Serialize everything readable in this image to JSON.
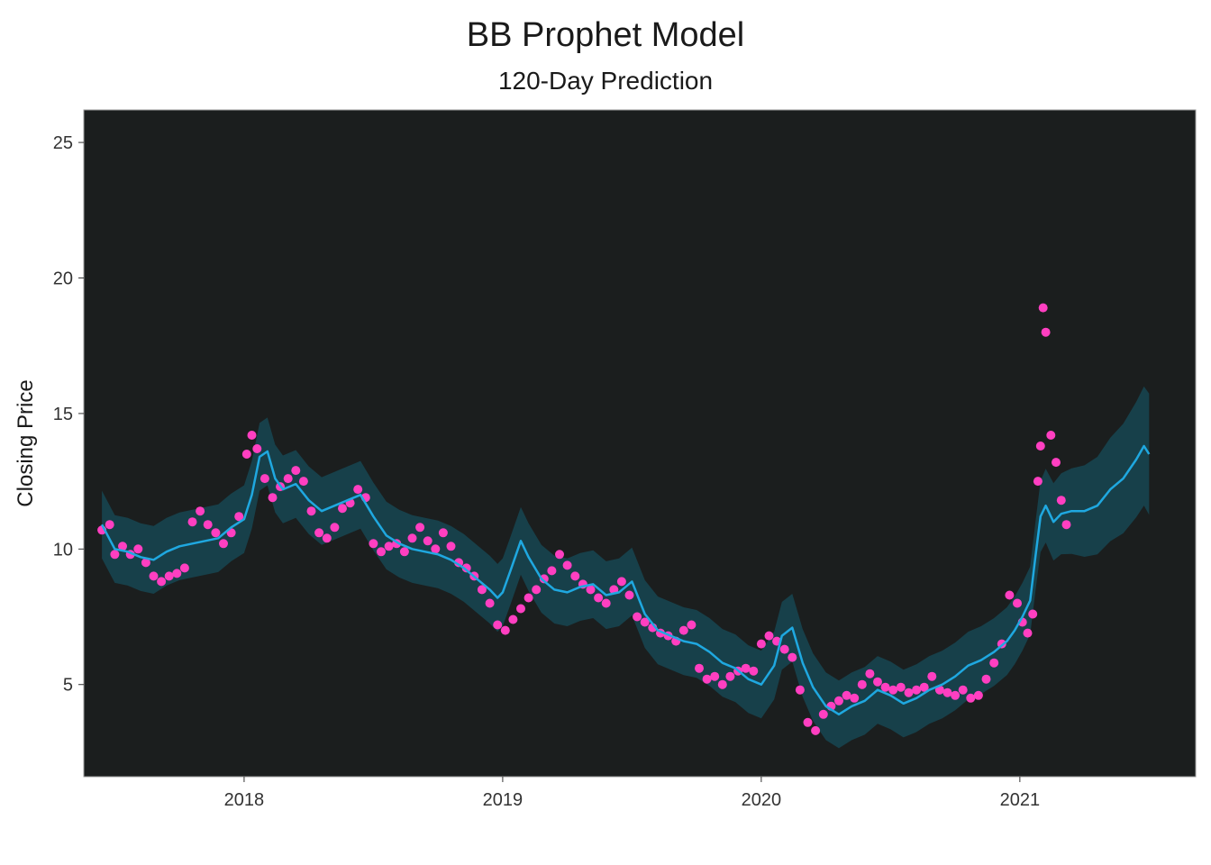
{
  "chart_data": {
    "type": "scatter",
    "title": "BB Prophet Model",
    "subtitle": "120-Day Prediction",
    "xlabel": "",
    "ylabel": "Closing Price",
    "xlim": [
      2017.38,
      2021.68
    ],
    "ylim": [
      1.6,
      26.2
    ],
    "x_ticks": [
      2018,
      2019,
      2020,
      2021
    ],
    "y_ticks": [
      5,
      10,
      15,
      20,
      25
    ],
    "grid": false,
    "legend": "none",
    "colors": {
      "panel_background": "#1b1e1e",
      "panel_border": "#9a9a9a",
      "observed_points": "#ff3fc1",
      "forecast_line": "#1fa8e0",
      "uncertainty_band": "#17404a"
    },
    "series": [
      {
        "kind": "points",
        "x": [
          2017.45,
          2017.48,
          2017.5,
          2017.53,
          2017.56,
          2017.59,
          2017.62,
          2017.65,
          2017.68,
          2017.71,
          2017.74,
          2017.77,
          2017.8,
          2017.83,
          2017.86,
          2017.89,
          2017.92,
          2017.95,
          2017.98,
          2018.01,
          2018.03,
          2018.05,
          2018.08,
          2018.11,
          2018.14,
          2018.17,
          2018.2,
          2018.23,
          2018.26,
          2018.29,
          2018.32,
          2018.35,
          2018.38,
          2018.41,
          2018.44,
          2018.47,
          2018.5,
          2018.53,
          2018.56,
          2018.59,
          2018.62,
          2018.65,
          2018.68,
          2018.71,
          2018.74,
          2018.77,
          2018.8,
          2018.83,
          2018.86,
          2018.89,
          2018.92,
          2018.95,
          2018.98,
          2019.01,
          2019.04,
          2019.07,
          2019.1,
          2019.13,
          2019.16,
          2019.19,
          2019.22,
          2019.25,
          2019.28,
          2019.31,
          2019.34,
          2019.37,
          2019.4,
          2019.43,
          2019.46,
          2019.49,
          2019.52,
          2019.55,
          2019.58,
          2019.61,
          2019.64,
          2019.67,
          2019.7,
          2019.73,
          2019.76,
          2019.79,
          2019.82,
          2019.85,
          2019.88,
          2019.91,
          2019.94,
          2019.97,
          2020.0,
          2020.03,
          2020.06,
          2020.09,
          2020.12,
          2020.15,
          2020.18,
          2020.21,
          2020.24,
          2020.27,
          2020.3,
          2020.33,
          2020.36,
          2020.39,
          2020.42,
          2020.45,
          2020.48,
          2020.51,
          2020.54,
          2020.57,
          2020.6,
          2020.63,
          2020.66,
          2020.69,
          2020.72,
          2020.75,
          2020.78,
          2020.81,
          2020.84,
          2020.87,
          2020.9,
          2020.93,
          2020.96,
          2020.99,
          2021.01,
          2021.03,
          2021.05,
          2021.07,
          2021.08,
          2021.09,
          2021.1,
          2021.12,
          2021.14,
          2021.16,
          2021.18
        ],
        "y": [
          10.7,
          10.9,
          9.8,
          10.1,
          9.8,
          10.0,
          9.5,
          9.0,
          8.8,
          9.0,
          9.1,
          9.3,
          11.0,
          11.4,
          10.9,
          10.6,
          10.2,
          10.6,
          11.2,
          13.5,
          14.2,
          13.7,
          12.6,
          11.9,
          12.3,
          12.6,
          12.9,
          12.5,
          11.4,
          10.6,
          10.4,
          10.8,
          11.5,
          11.7,
          12.2,
          11.9,
          10.2,
          9.9,
          10.1,
          10.2,
          9.9,
          10.4,
          10.8,
          10.3,
          10.0,
          10.6,
          10.1,
          9.5,
          9.3,
          9.0,
          8.5,
          8.0,
          7.2,
          7.0,
          7.4,
          7.8,
          8.2,
          8.5,
          8.9,
          9.2,
          9.8,
          9.4,
          9.0,
          8.7,
          8.5,
          8.2,
          8.0,
          8.5,
          8.8,
          8.3,
          7.5,
          7.3,
          7.1,
          6.9,
          6.8,
          6.6,
          7.0,
          7.2,
          5.6,
          5.2,
          5.3,
          5.0,
          5.3,
          5.5,
          5.6,
          5.5,
          6.5,
          6.8,
          6.6,
          6.3,
          6.0,
          4.8,
          3.6,
          3.3,
          3.9,
          4.2,
          4.4,
          4.6,
          4.5,
          5.0,
          5.4,
          5.1,
          4.9,
          4.8,
          4.9,
          4.7,
          4.8,
          4.9,
          5.3,
          4.8,
          4.7,
          4.6,
          4.8,
          4.5,
          4.6,
          5.2,
          5.8,
          6.5,
          8.3,
          8.0,
          7.3,
          6.9,
          7.6,
          12.5,
          13.8,
          18.9,
          18.0,
          14.2,
          13.2,
          11.8,
          10.9
        ]
      },
      {
        "kind": "line",
        "x": [
          2017.45,
          2017.5,
          2017.55,
          2017.6,
          2017.65,
          2017.7,
          2017.75,
          2017.8,
          2017.85,
          2017.9,
          2017.95,
          2018.0,
          2018.03,
          2018.06,
          2018.09,
          2018.12,
          2018.15,
          2018.2,
          2018.25,
          2018.3,
          2018.35,
          2018.4,
          2018.45,
          2018.5,
          2018.55,
          2018.6,
          2018.65,
          2018.7,
          2018.75,
          2018.8,
          2018.85,
          2018.9,
          2018.95,
          2018.98,
          2019.0,
          2019.03,
          2019.07,
          2019.1,
          2019.15,
          2019.2,
          2019.25,
          2019.3,
          2019.35,
          2019.4,
          2019.45,
          2019.5,
          2019.55,
          2019.6,
          2019.65,
          2019.7,
          2019.75,
          2019.8,
          2019.85,
          2019.9,
          2019.95,
          2020.0,
          2020.05,
          2020.08,
          2020.12,
          2020.16,
          2020.2,
          2020.25,
          2020.3,
          2020.35,
          2020.4,
          2020.45,
          2020.5,
          2020.55,
          2020.6,
          2020.65,
          2020.7,
          2020.75,
          2020.8,
          2020.85,
          2020.9,
          2020.95,
          2020.98,
          2021.01,
          2021.04,
          2021.06,
          2021.08,
          2021.1,
          2021.13,
          2021.16,
          2021.2,
          2021.25,
          2021.3,
          2021.35,
          2021.4,
          2021.45,
          2021.48,
          2021.5
        ],
        "y": [
          10.9,
          10.0,
          9.9,
          9.7,
          9.6,
          9.9,
          10.1,
          10.2,
          10.3,
          10.4,
          10.8,
          11.1,
          12.0,
          13.4,
          13.6,
          12.6,
          12.2,
          12.4,
          11.8,
          11.4,
          11.6,
          11.8,
          12.0,
          11.2,
          10.5,
          10.2,
          10.0,
          9.9,
          9.8,
          9.6,
          9.3,
          8.9,
          8.5,
          8.2,
          8.4,
          9.2,
          10.3,
          9.7,
          8.9,
          8.5,
          8.4,
          8.6,
          8.7,
          8.3,
          8.4,
          8.8,
          7.6,
          7.0,
          6.8,
          6.6,
          6.5,
          6.2,
          5.8,
          5.6,
          5.2,
          5.0,
          5.7,
          6.8,
          7.1,
          5.8,
          4.9,
          4.2,
          3.9,
          4.2,
          4.4,
          4.8,
          4.6,
          4.3,
          4.5,
          4.8,
          5.0,
          5.3,
          5.7,
          5.9,
          6.2,
          6.6,
          7.0,
          7.5,
          8.1,
          9.7,
          11.2,
          11.6,
          11.0,
          11.3,
          11.4,
          11.4,
          11.6,
          12.2,
          12.6,
          13.3,
          13.8,
          13.5
        ]
      }
    ]
  }
}
